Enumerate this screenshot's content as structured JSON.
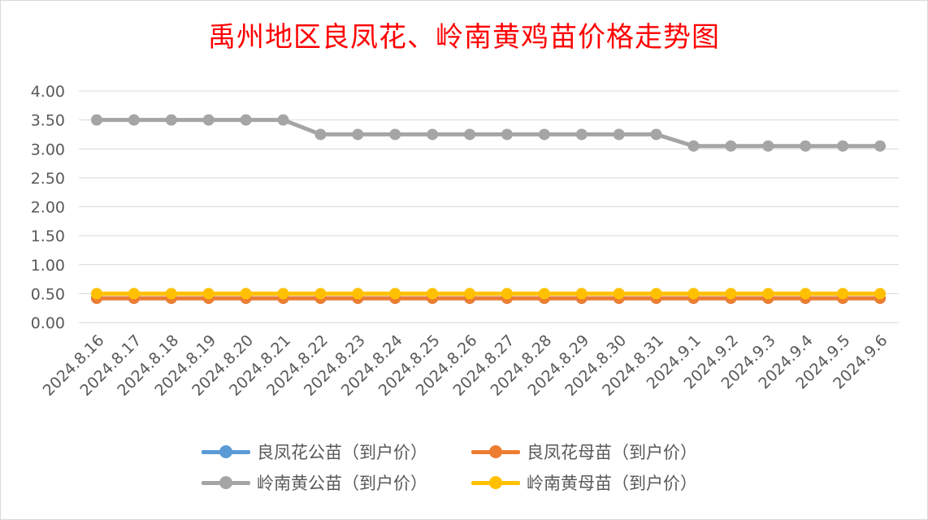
{
  "chart_data": {
    "type": "line",
    "title": "禹州地区良凤花、岭南黄鸡苗价格走势图",
    "categories": [
      "2024.8.16",
      "2024.8.17",
      "2024.8.18",
      "2024.8.19",
      "2024.8.20",
      "2024.8.21",
      "2024.8.22",
      "2024.8.23",
      "2024.8.24",
      "2024.8.25",
      "2024.8.26",
      "2024.8.27",
      "2024.8.28",
      "2024.8.29",
      "2024.8.30",
      "2024.8.31",
      "2024.9.1",
      "2024.9.2",
      "2024.9.3",
      "2024.9.4",
      "2024.9.5",
      "2024.9.6"
    ],
    "yticks": [
      "0.00",
      "0.50",
      "1.00",
      "1.50",
      "2.00",
      "2.50",
      "3.00",
      "3.50",
      "4.00"
    ],
    "ylim": [
      0,
      4
    ],
    "grid": true,
    "legend_position": "bottom",
    "series": [
      {
        "name": "良凤花公苗（到户价）",
        "color": "#5b9bd5",
        "values": [
          0.42,
          0.42,
          0.42,
          0.42,
          0.42,
          0.42,
          0.42,
          0.42,
          0.42,
          0.42,
          0.42,
          0.42,
          0.42,
          0.42,
          0.42,
          0.42,
          0.42,
          0.42,
          0.42,
          0.42,
          0.42,
          0.42
        ]
      },
      {
        "name": "良凤花母苗（到户价）",
        "color": "#ed7d31",
        "values": [
          0.42,
          0.42,
          0.42,
          0.42,
          0.42,
          0.42,
          0.42,
          0.42,
          0.42,
          0.42,
          0.42,
          0.42,
          0.42,
          0.42,
          0.42,
          0.42,
          0.42,
          0.42,
          0.42,
          0.42,
          0.42,
          0.42
        ]
      },
      {
        "name": "岭南黄公苗（到户价）",
        "color": "#a5a5a5",
        "values": [
          3.5,
          3.5,
          3.5,
          3.5,
          3.5,
          3.5,
          3.25,
          3.25,
          3.25,
          3.25,
          3.25,
          3.25,
          3.25,
          3.25,
          3.25,
          3.25,
          3.05,
          3.05,
          3.05,
          3.05,
          3.05,
          3.05
        ]
      },
      {
        "name": "岭南黄母苗（到户价）",
        "color": "#ffc000",
        "values": [
          0.5,
          0.5,
          0.5,
          0.5,
          0.5,
          0.5,
          0.5,
          0.5,
          0.5,
          0.5,
          0.5,
          0.5,
          0.5,
          0.5,
          0.5,
          0.5,
          0.5,
          0.5,
          0.5,
          0.5,
          0.5,
          0.5
        ]
      }
    ],
    "legend_order": [
      0,
      1,
      2,
      3
    ]
  }
}
